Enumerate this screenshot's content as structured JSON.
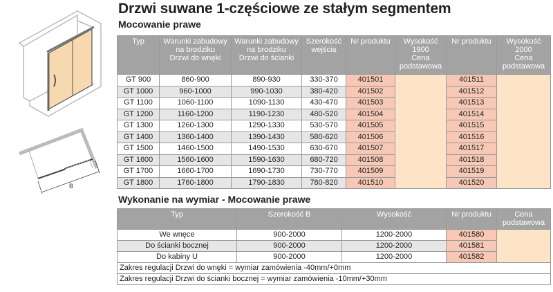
{
  "title": "Drzwi suwane 1-częściowe ze stałym segmentem",
  "section1": {
    "title": "Mocowanie prawe",
    "headers": [
      "Typ",
      "Warunki zabudowy\nna brodziku\nDrzwi do wnęki",
      "Warunki zabudowy\nna brodziku\nDrzwi do ścianki",
      "Szerokość\nwejścia",
      "Nr produktu",
      "Wysokość\n1900\nCena\npodstawowa",
      "Nr produktu",
      "Wysokość\n2000\nCena\npodstawowa"
    ],
    "rows": [
      [
        "GT 900",
        "860-900",
        "890-930",
        "330-370",
        "401501",
        "401511"
      ],
      [
        "GT 1000",
        "960-1000",
        "990-1030",
        "380-420",
        "401502",
        "401512"
      ],
      [
        "GT 1100",
        "1060-1100",
        "1090-1130",
        "430-470",
        "401503",
        "401513"
      ],
      [
        "GT 1200",
        "1160-1200",
        "1190-1230",
        "480-520",
        "401504",
        "401514"
      ],
      [
        "GT 1300",
        "1260-1300",
        "1290-1330",
        "530-570",
        "401505",
        "401515"
      ],
      [
        "GT 1400",
        "1360-1400",
        "1390-1430",
        "580-620",
        "401506",
        "401516"
      ],
      [
        "GT 1500",
        "1460-1500",
        "1490-1530",
        "630-670",
        "401507",
        "401517"
      ],
      [
        "GT 1600",
        "1560-1600",
        "1590-1630",
        "680-720",
        "401508",
        "401518"
      ],
      [
        "GT 1700",
        "1660-1700",
        "1690-1730",
        "730-770",
        "401509",
        "401519"
      ],
      [
        "GT 1800",
        "1760-1800",
        "1790-1830",
        "780-820",
        "401510",
        "401520"
      ]
    ]
  },
  "section2": {
    "title": "Wykonanie na wymiar - Mocowanie prawe",
    "headers": [
      "Typ",
      "Szerokość B",
      "Wysokość",
      "Nr produktu",
      "Cena\npodstawowa"
    ],
    "rows": [
      [
        "We wnęce",
        "900-2000",
        "1200-2000",
        "401580"
      ],
      [
        "Do ścianki bocznej",
        "900-2000",
        "1200-2000",
        "401581"
      ],
      [
        "Do kabiny U",
        "900-2000",
        "1200-2000",
        "401582"
      ]
    ],
    "notes": [
      "Zakres regulacji Drzwi do wnęki = wymiar zamówienia -40mm/+0mm",
      "Zakres regulacji Drzwi do ścianki bocznej = wymiar zamówienia -10mm/+30mm"
    ]
  },
  "diagram": {
    "dimension_label": "B"
  },
  "colors": {
    "header": "#a3a3a3",
    "product_cell": "#f6c8b5",
    "price_cell": "#fde4c6",
    "glass": "#f7d9b0"
  }
}
